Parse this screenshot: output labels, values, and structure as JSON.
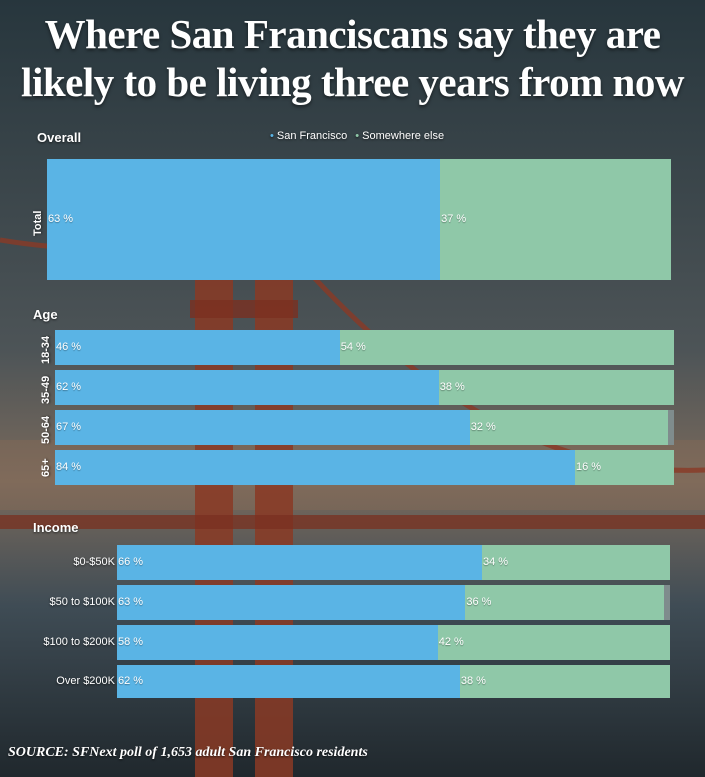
{
  "header": {
    "title_line1": "Where San Franciscans say they are",
    "title_line2": "likely to be living three years from now"
  },
  "legend": {
    "items": [
      {
        "label": "San Francisco",
        "color": "#5ab4e5"
      },
      {
        "label": "Somewhere else",
        "color": "#8fc8a8"
      }
    ]
  },
  "footer": {
    "source": "SOURCE:  SFNext poll of 1,653 adult San Francisco residents"
  },
  "chart_data": {
    "type": "bar",
    "stacked": true,
    "orientation": "horizontal",
    "unit": "%",
    "series_names": [
      "San Francisco",
      "Somewhere else"
    ],
    "groups": [
      {
        "name": "Overall",
        "categories": [
          "Total"
        ],
        "series": [
          {
            "name": "San Francisco",
            "values": [
              63
            ]
          },
          {
            "name": "Somewhere else",
            "values": [
              37
            ]
          }
        ]
      },
      {
        "name": "Age",
        "categories": [
          "18-34",
          "35-49",
          "50-64",
          "65+"
        ],
        "series": [
          {
            "name": "San Francisco",
            "values": [
              46,
              62,
              67,
              84
            ]
          },
          {
            "name": "Somewhere else",
            "values": [
              54,
              38,
              32,
              16
            ]
          }
        ]
      },
      {
        "name": "Income",
        "categories": [
          "$0-$50K",
          "$50 to $100K",
          "$100 to $200K",
          "Over $200K"
        ],
        "series": [
          {
            "name": "San Francisco",
            "values": [
              66,
              63,
              58,
              62
            ]
          },
          {
            "name": "Somewhere else",
            "values": [
              34,
              36,
              42,
              38
            ]
          }
        ]
      }
    ]
  }
}
